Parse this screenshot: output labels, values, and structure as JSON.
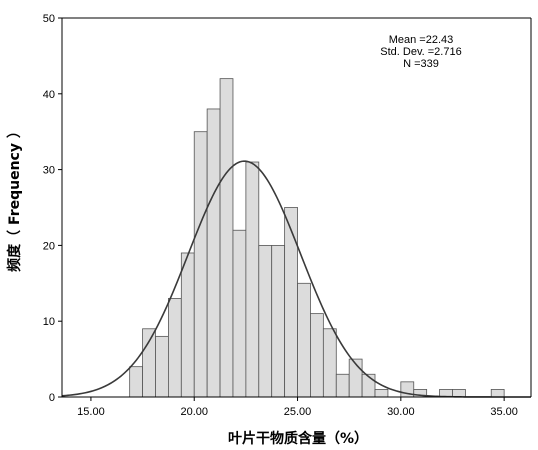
{
  "chart_data": {
    "type": "bar",
    "subtype": "histogram",
    "xlabel": "叶片干物质含量（%）",
    "ylabel": "频度（ Frequency ）",
    "xlim": [
      13.6,
      36.3
    ],
    "ylim": [
      0,
      50
    ],
    "xticks": [
      "15.00",
      "20.00",
      "25.00",
      "30.00",
      "35.00"
    ],
    "xtick_values": [
      15,
      20,
      25,
      30,
      35
    ],
    "yticks": [
      "0",
      "10",
      "20",
      "30",
      "40",
      "50"
    ],
    "ytick_values": [
      0,
      10,
      20,
      30,
      40,
      50
    ],
    "bin_width": 0.625,
    "bins": [
      {
        "start": 16.875,
        "count": 4
      },
      {
        "start": 17.5,
        "count": 9
      },
      {
        "start": 18.125,
        "count": 8
      },
      {
        "start": 18.75,
        "count": 13
      },
      {
        "start": 19.375,
        "count": 19
      },
      {
        "start": 20.0,
        "count": 35
      },
      {
        "start": 20.625,
        "count": 38
      },
      {
        "start": 21.25,
        "count": 42
      },
      {
        "start": 21.875,
        "count": 22
      },
      {
        "start": 22.5,
        "count": 31
      },
      {
        "start": 23.125,
        "count": 20
      },
      {
        "start": 23.75,
        "count": 20
      },
      {
        "start": 24.375,
        "count": 25
      },
      {
        "start": 25.0,
        "count": 15
      },
      {
        "start": 25.625,
        "count": 11
      },
      {
        "start": 26.25,
        "count": 9
      },
      {
        "start": 26.875,
        "count": 3
      },
      {
        "start": 27.5,
        "count": 5
      },
      {
        "start": 28.125,
        "count": 3
      },
      {
        "start": 28.75,
        "count": 1
      },
      {
        "start": 30.0,
        "count": 2
      },
      {
        "start": 30.625,
        "count": 1
      },
      {
        "start": 31.875,
        "count": 1
      },
      {
        "start": 32.5,
        "count": 1
      },
      {
        "start": 34.375,
        "count": 1
      }
    ],
    "normal_curve": {
      "mean": 22.43,
      "sd": 2.716,
      "n": 339
    },
    "stats": {
      "mean_label": "Mean =22.43",
      "sd_label": "Std. Dev. =2.716",
      "n_label": "N =339"
    },
    "bar_fill": "#dcdcdc",
    "bar_stroke": "#555555",
    "curve_color": "#3a3a3a",
    "legend": "none",
    "grid": false
  }
}
